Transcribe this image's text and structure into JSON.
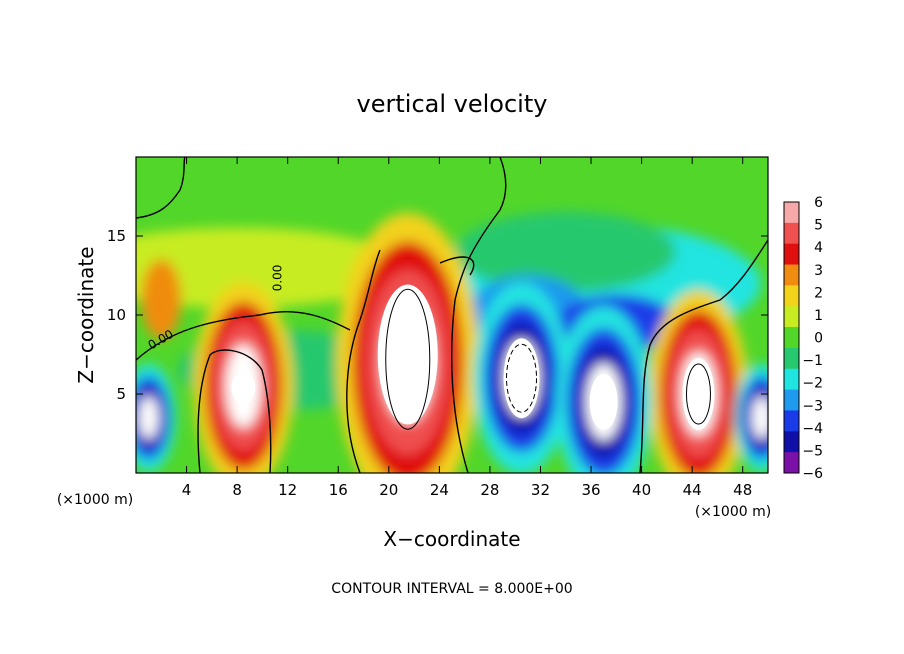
{
  "chart_data": {
    "type": "heatmap",
    "title": "vertical velocity",
    "xlabel": "X−coordinate",
    "ylabel": "Z−coordinate",
    "x_unit": "(×1000 m)",
    "xlim": [
      0,
      50
    ],
    "ylim": [
      0,
      20
    ],
    "x_ticks": [
      "4",
      "8",
      "12",
      "16",
      "20",
      "24",
      "28",
      "32",
      "36",
      "40",
      "44",
      "48"
    ],
    "y_ticks": [
      "5",
      "10",
      "15"
    ],
    "footer": "CONTOUR INTERVAL = 8.000E+00",
    "colorbar": {
      "labels": [
        "6",
        "5",
        "4",
        "3",
        "2",
        "1",
        "0",
        "−1",
        "−2",
        "−3",
        "−4",
        "−5",
        "−6"
      ],
      "colors": [
        "#f7a8a8",
        "#f05050",
        "#e01010",
        "#f08c10",
        "#f2d21a",
        "#c8ec22",
        "#52d62a",
        "#28c86e",
        "#20e4e0",
        "#1e9aee",
        "#1a3ce8",
        "#1010a8",
        "#7a10a8"
      ]
    },
    "contour_labels": [
      "0.00",
      "0.00"
    ],
    "features": [
      {
        "name": "updraft",
        "x": 21.5,
        "z": 7.0,
        "peak": 6
      },
      {
        "name": "updraft",
        "x": 8.5,
        "z": 5.5,
        "peak": 6
      },
      {
        "name": "updraft",
        "x": 44.5,
        "z": 5.0,
        "peak": 6
      },
      {
        "name": "downdraft",
        "x": 30.5,
        "z": 6.0,
        "peak": -6
      },
      {
        "name": "downdraft",
        "x": 37.0,
        "z": 4.5,
        "peak": -6
      },
      {
        "name": "downdraft",
        "x": 1.0,
        "z": 3.5,
        "peak": -6
      },
      {
        "name": "downdraft",
        "x": 49.5,
        "z": 3.5,
        "peak": -6
      }
    ]
  }
}
